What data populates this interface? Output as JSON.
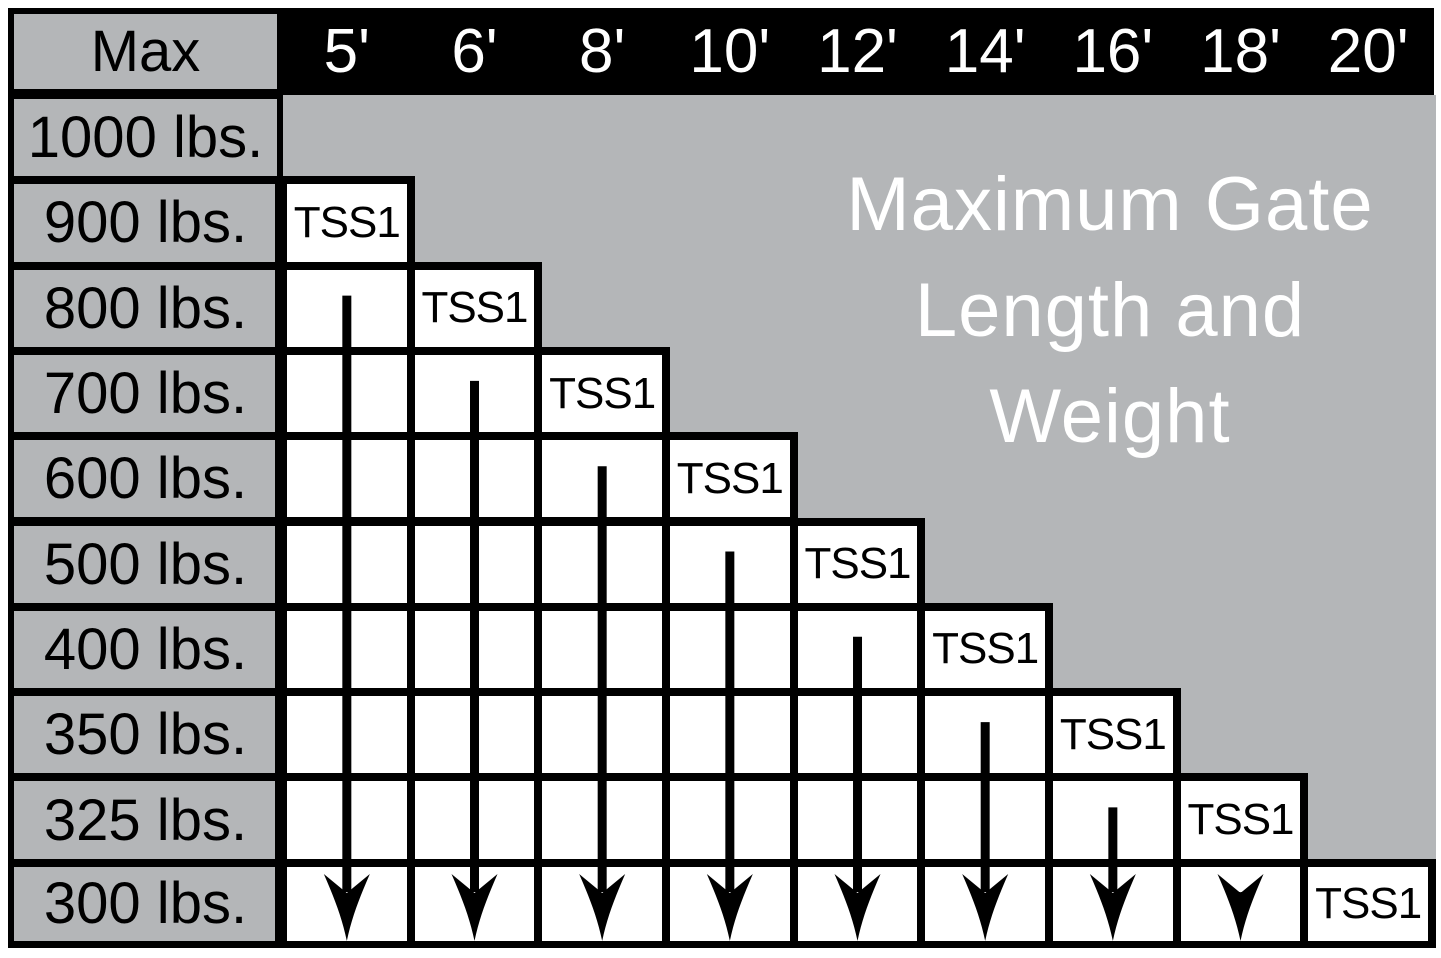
{
  "chart_data": {
    "type": "table",
    "title": "Maximum Gate Length and Weight",
    "title_lines": [
      "Maximum Gate",
      "Length and",
      "Weight"
    ],
    "corner_label": "Max",
    "column_headers": [
      "5'",
      "6'",
      "8'",
      "10'",
      "12'",
      "14'",
      "16'",
      "18'",
      "20'"
    ],
    "row_headers": [
      "1000 lbs.",
      "900 lbs.",
      "800 lbs.",
      "700 lbs.",
      "600 lbs.",
      "500 lbs.",
      "400 lbs.",
      "350 lbs.",
      "325 lbs.",
      "300 lbs."
    ],
    "model_label": "TSS1",
    "model_cells": [
      {
        "column": "5'",
        "max_weight": "900 lbs."
      },
      {
        "column": "6'",
        "max_weight": "800 lbs."
      },
      {
        "column": "8'",
        "max_weight": "700 lbs."
      },
      {
        "column": "10'",
        "max_weight": "600 lbs."
      },
      {
        "column": "12'",
        "max_weight": "500 lbs."
      },
      {
        "column": "14'",
        "max_weight": "400 lbs."
      },
      {
        "column": "16'",
        "max_weight": "350 lbs."
      },
      {
        "column": "18'",
        "max_weight": "325 lbs."
      },
      {
        "column": "20'",
        "max_weight": "300 lbs."
      }
    ],
    "arrows": {
      "direction": "down",
      "columns": [
        "5'",
        "6'",
        "8'",
        "10'",
        "12'",
        "14'",
        "16'",
        "18'"
      ]
    },
    "colors": {
      "background": "#ffffff",
      "grid_black": "#000000",
      "shaded_gray": "#b4b6b8",
      "header_text": "#ffffff",
      "cell_white": "#ffffff",
      "cell_text": "#000000",
      "label_text": "#000000",
      "title_text": "#ffffff"
    }
  }
}
